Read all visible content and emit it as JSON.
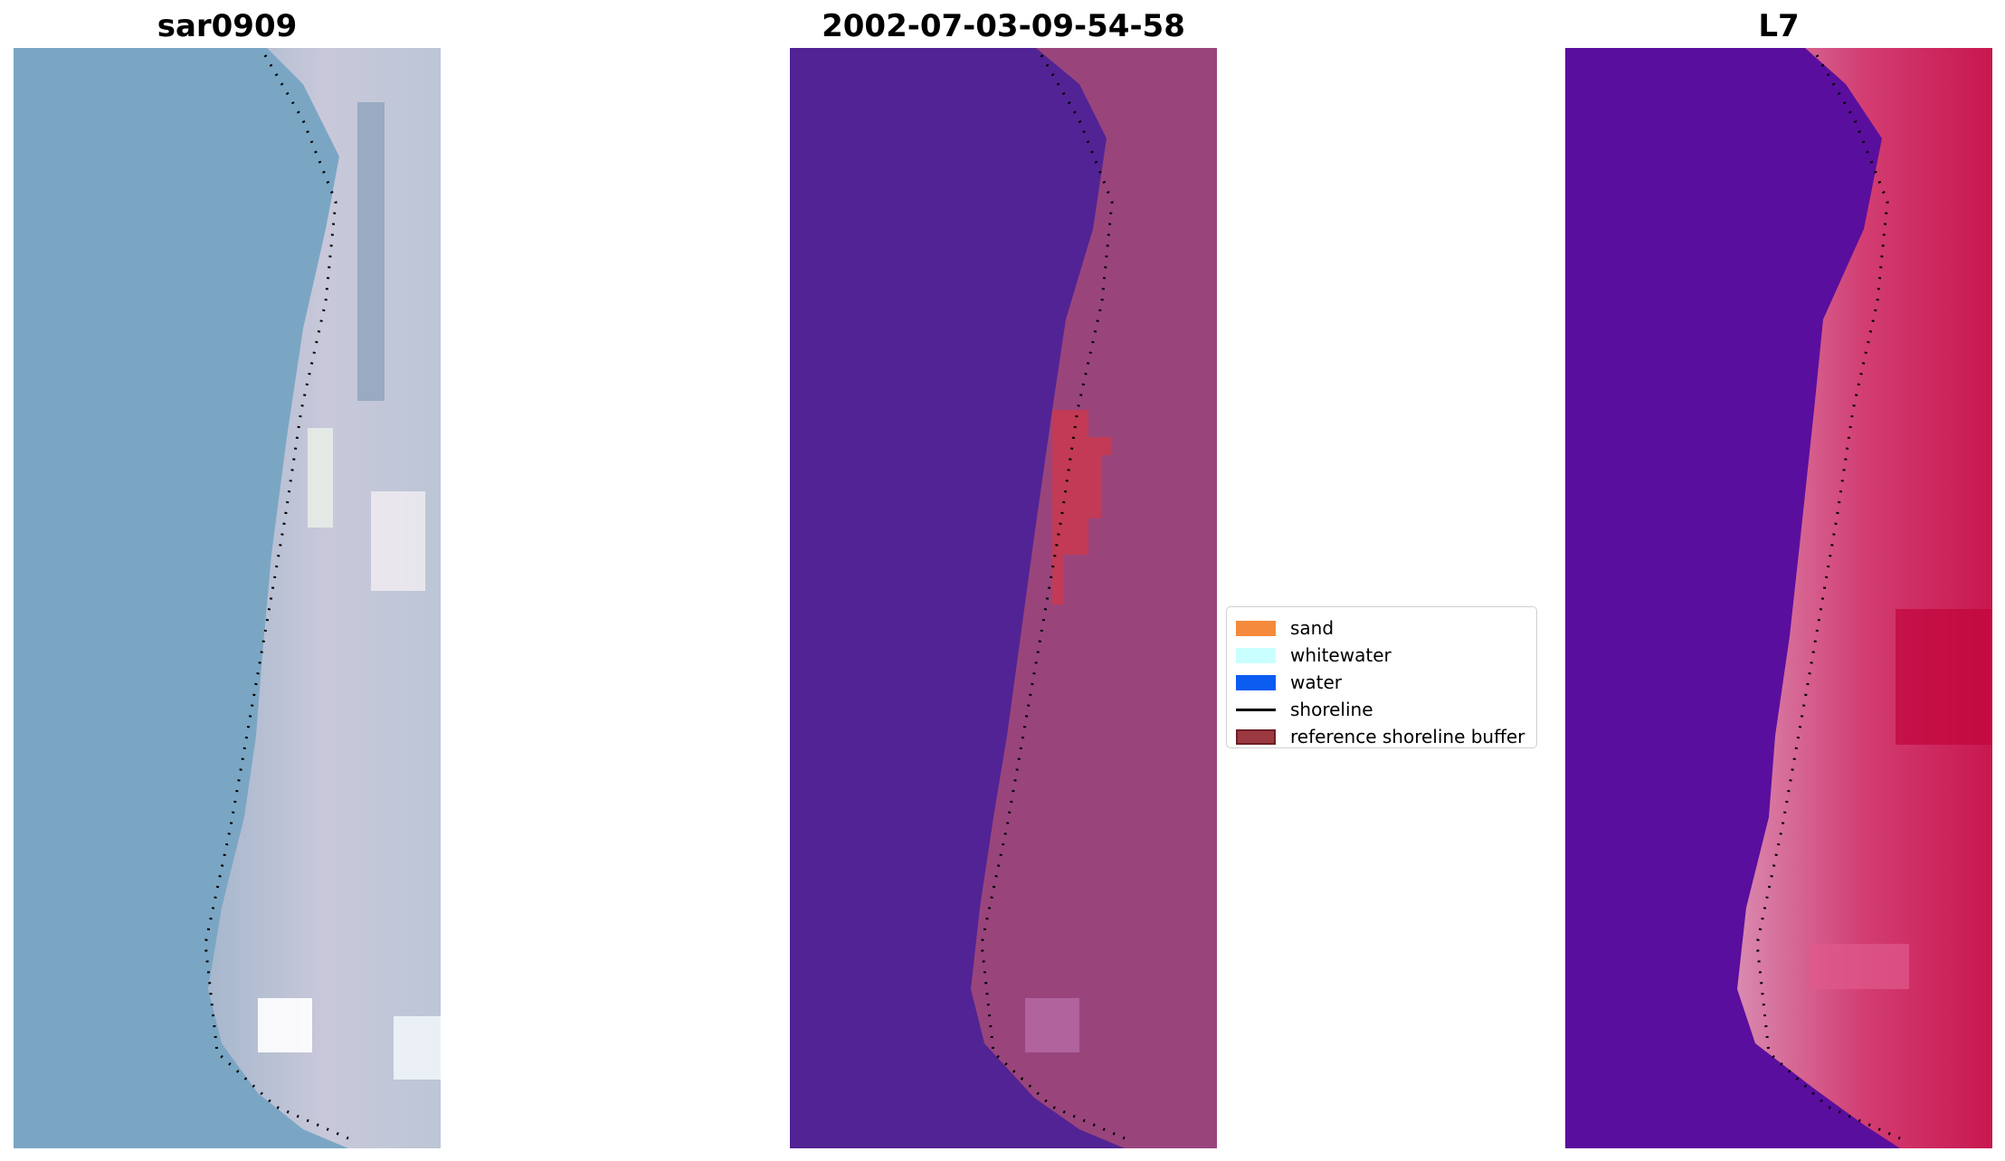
{
  "panels": {
    "left_title": "sar0909",
    "middle_title": "2002-07-03-09-54-58",
    "right_title": "L7"
  },
  "legend": {
    "items": [
      {
        "label": "sand",
        "color": "#f58a3c",
        "kind": "patch"
      },
      {
        "label": "whitewater",
        "color": "#c9ffff",
        "kind": "patch"
      },
      {
        "label": "water",
        "color": "#0b5cf0",
        "kind": "patch"
      },
      {
        "label": "shoreline",
        "color": "#000000",
        "kind": "line"
      },
      {
        "label": "reference shoreline buffer",
        "color": "#9a3a40",
        "kind": "patch"
      }
    ]
  },
  "colors": {
    "rgb_water": "#7aa6c4",
    "rgb_land": "#c4c6d8",
    "classified_water": "#522394",
    "classified_land": "#99457c",
    "classified_buffer_hit": "#c23a55",
    "index_water": "#5a0e9e",
    "index_land": "#cf2f68"
  }
}
